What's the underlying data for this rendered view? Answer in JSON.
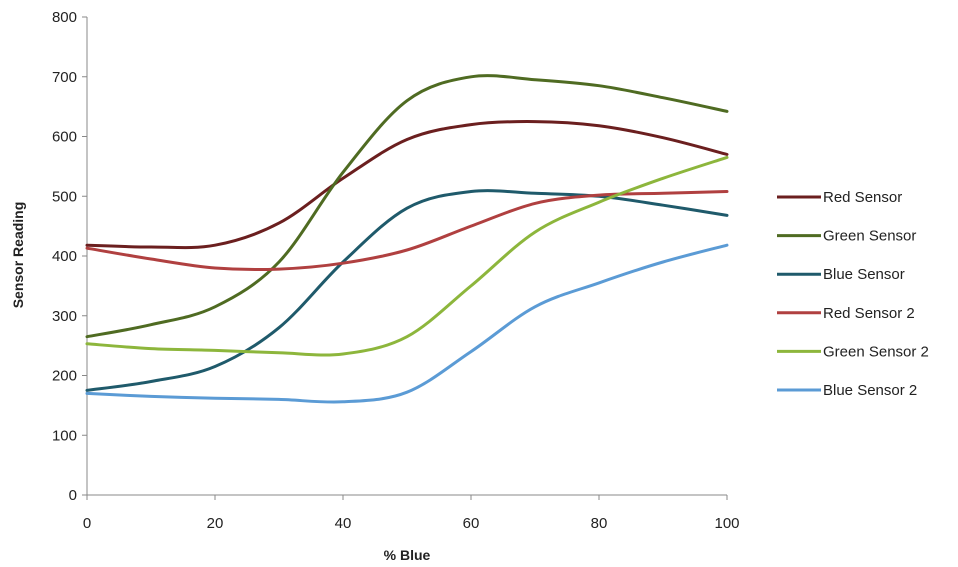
{
  "chart_data": {
    "type": "line",
    "title": "",
    "xlabel": "% Blue",
    "ylabel": "Sensor Reading",
    "xlim": [
      0,
      100
    ],
    "ylim": [
      0,
      800
    ],
    "xticks": [
      0,
      20,
      40,
      60,
      80,
      100
    ],
    "yticks": [
      0,
      100,
      200,
      300,
      400,
      500,
      600,
      700,
      800
    ],
    "grid": false,
    "smooth": true,
    "legend_position": "right",
    "x": [
      0,
      10,
      20,
      30,
      40,
      50,
      60,
      70,
      80,
      90,
      100
    ],
    "series": [
      {
        "name": "Red Sensor",
        "color": "#6b1f1f",
        "values": [
          418,
          415,
          418,
          455,
          530,
          595,
          620,
          625,
          618,
          598,
          570
        ]
      },
      {
        "name": "Green Sensor",
        "color": "#4f6b22",
        "values": [
          265,
          285,
          315,
          390,
          540,
          660,
          700,
          695,
          685,
          665,
          642
        ]
      },
      {
        "name": "Blue Sensor",
        "color": "#1f5a6b",
        "values": [
          175,
          190,
          215,
          280,
          390,
          480,
          508,
          505,
          500,
          485,
          468
        ]
      },
      {
        "name": "Red Sensor 2",
        "color": "#b04040",
        "values": [
          413,
          395,
          380,
          378,
          388,
          410,
          450,
          488,
          502,
          505,
          508
        ]
      },
      {
        "name": "Green Sensor 2",
        "color": "#8db63c",
        "values": [
          253,
          245,
          242,
          238,
          236,
          265,
          350,
          440,
          490,
          530,
          565
        ]
      },
      {
        "name": "Blue Sensor 2",
        "color": "#5b9bd5",
        "values": [
          170,
          165,
          162,
          160,
          156,
          172,
          240,
          315,
          355,
          390,
          418
        ]
      }
    ]
  }
}
